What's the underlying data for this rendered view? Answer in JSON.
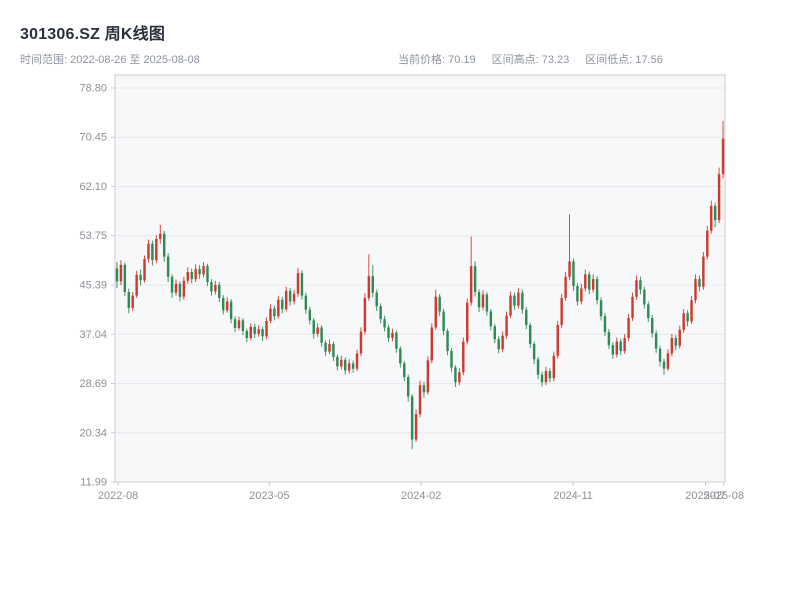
{
  "header": {
    "title": "301306.SZ 周K线图",
    "time_range": "时间范围: 2022-08-26 至 2025-08-08",
    "current_price": "当前价格: 70.19",
    "range_high": "区间高点: 73.23",
    "range_low": "区间低点: 17.56"
  },
  "chart_data": {
    "type": "candlestick",
    "title": "301306.SZ 周K线图",
    "symbol": "301306.SZ",
    "interval": "weekly",
    "time_range": {
      "start": "2022-08-26",
      "end": "2025-08-08"
    },
    "current_price": 70.19,
    "range_high": 73.23,
    "range_low": 17.56,
    "ylim": [
      11.99,
      81.0
    ],
    "y_ticks": [
      "78.80",
      "70.45",
      "62.10",
      "53.75",
      "45.39",
      "37.04",
      "28.69",
      "20.34",
      "11.99"
    ],
    "x_ticks": [
      {
        "label": "2022-08",
        "pos": 0.005
      },
      {
        "label": "2023-05",
        "pos": 0.253
      },
      {
        "label": "2024-02",
        "pos": 0.502
      },
      {
        "label": "2024-11",
        "pos": 0.751
      },
      {
        "label": "2025-07",
        "pos": 0.968
      },
      {
        "label": "2025-08",
        "pos": 0.998
      }
    ],
    "grid": true,
    "legend": "none",
    "colors": {
      "up": "#cf3a2e",
      "down": "#2e8b57",
      "grid": "#e6e8eb",
      "axis": "#c9cdd4",
      "plot_bg": "#f7f8f9",
      "text": "#8b9097"
    },
    "candles_format": [
      "open",
      "high",
      "low",
      "close"
    ],
    "candles": [
      [
        48.2,
        49.3,
        44.9,
        46.0
      ],
      [
        46.0,
        49.6,
        45.4,
        48.8
      ],
      [
        48.8,
        49.2,
        43.5,
        44.2
      ],
      [
        44.2,
        44.8,
        40.6,
        41.5
      ],
      [
        41.5,
        44.2,
        41.0,
        43.6
      ],
      [
        43.6,
        47.8,
        43.2,
        47.1
      ],
      [
        47.1,
        48.0,
        45.3,
        46.2
      ],
      [
        46.2,
        50.4,
        45.8,
        49.8
      ],
      [
        49.8,
        53.1,
        49.2,
        52.4
      ],
      [
        52.4,
        52.9,
        48.7,
        49.6
      ],
      [
        49.6,
        53.9,
        49.1,
        53.2
      ],
      [
        53.2,
        55.6,
        52.4,
        54.1
      ],
      [
        54.1,
        54.6,
        49.3,
        50.2
      ],
      [
        50.2,
        50.8,
        45.9,
        46.8
      ],
      [
        46.8,
        47.2,
        43.2,
        44.1
      ],
      [
        44.1,
        46.3,
        43.6,
        45.6
      ],
      [
        45.6,
        46.0,
        42.6,
        43.4
      ],
      [
        43.4,
        46.8,
        42.9,
        46.1
      ],
      [
        46.1,
        48.4,
        45.6,
        47.6
      ],
      [
        47.6,
        48.2,
        45.7,
        46.4
      ],
      [
        46.4,
        48.9,
        45.9,
        48.1
      ],
      [
        48.1,
        48.8,
        46.4,
        47.2
      ],
      [
        47.2,
        49.3,
        46.7,
        48.6
      ],
      [
        48.6,
        49.0,
        45.2,
        45.9
      ],
      [
        45.9,
        46.4,
        43.6,
        44.3
      ],
      [
        44.3,
        46.1,
        43.8,
        45.4
      ],
      [
        45.4,
        45.9,
        42.5,
        43.2
      ],
      [
        43.2,
        43.7,
        40.4,
        41.1
      ],
      [
        41.1,
        43.3,
        40.7,
        42.6
      ],
      [
        42.6,
        43.0,
        38.9,
        39.6
      ],
      [
        39.6,
        40.1,
        37.4,
        38.1
      ],
      [
        38.1,
        40.0,
        37.7,
        39.4
      ],
      [
        39.4,
        39.8,
        36.9,
        37.6
      ],
      [
        37.6,
        38.0,
        35.7,
        36.4
      ],
      [
        36.4,
        38.9,
        36.0,
        38.3
      ],
      [
        38.3,
        38.8,
        36.4,
        37.1
      ],
      [
        37.1,
        38.6,
        36.6,
        37.9
      ],
      [
        37.9,
        38.3,
        35.9,
        36.7
      ],
      [
        36.7,
        39.9,
        36.2,
        39.3
      ],
      [
        39.3,
        42.1,
        38.9,
        41.4
      ],
      [
        41.4,
        41.9,
        39.4,
        40.1
      ],
      [
        40.1,
        43.5,
        39.7,
        42.9
      ],
      [
        42.9,
        43.4,
        40.6,
        41.3
      ],
      [
        41.3,
        45.1,
        40.9,
        44.4
      ],
      [
        44.4,
        44.9,
        41.9,
        42.6
      ],
      [
        42.6,
        44.6,
        42.1,
        43.9
      ],
      [
        43.9,
        48.3,
        43.4,
        47.4
      ],
      [
        47.4,
        47.9,
        42.9,
        43.6
      ],
      [
        43.6,
        44.1,
        40.5,
        41.2
      ],
      [
        41.2,
        41.7,
        38.7,
        39.4
      ],
      [
        39.4,
        39.8,
        36.3,
        37.1
      ],
      [
        37.1,
        38.9,
        36.6,
        38.2
      ],
      [
        38.2,
        38.6,
        34.9,
        35.6
      ],
      [
        35.6,
        36.0,
        33.4,
        34.1
      ],
      [
        34.1,
        36.1,
        33.7,
        35.4
      ],
      [
        35.4,
        35.8,
        32.5,
        33.2
      ],
      [
        33.2,
        33.6,
        30.9,
        31.6
      ],
      [
        31.6,
        33.4,
        31.1,
        32.7
      ],
      [
        32.7,
        33.1,
        30.2,
        30.9
      ],
      [
        30.9,
        32.8,
        30.4,
        32.1
      ],
      [
        32.1,
        32.6,
        30.5,
        31.2
      ],
      [
        31.2,
        34.4,
        30.8,
        33.8
      ],
      [
        33.8,
        38.2,
        33.3,
        37.5
      ],
      [
        37.5,
        44.0,
        37.0,
        43.2
      ],
      [
        43.2,
        50.6,
        42.7,
        46.9
      ],
      [
        46.9,
        48.8,
        43.3,
        44.1
      ],
      [
        44.1,
        44.6,
        41.0,
        41.8
      ],
      [
        41.8,
        42.3,
        38.9,
        39.6
      ],
      [
        39.6,
        40.2,
        37.5,
        38.2
      ],
      [
        38.2,
        38.7,
        35.7,
        36.4
      ],
      [
        36.4,
        38.0,
        35.9,
        37.3
      ],
      [
        37.3,
        37.7,
        33.9,
        34.6
      ],
      [
        34.6,
        35.0,
        31.4,
        32.1
      ],
      [
        32.1,
        32.5,
        29.1,
        29.8
      ],
      [
        29.8,
        30.2,
        25.6,
        26.5
      ],
      [
        26.5,
        26.9,
        17.56,
        19.2
      ],
      [
        19.2,
        24.3,
        18.8,
        23.5
      ],
      [
        23.5,
        29.2,
        23.0,
        28.4
      ],
      [
        28.4,
        29.0,
        26.3,
        27.2
      ],
      [
        27.2,
        33.3,
        26.8,
        32.6
      ],
      [
        32.6,
        38.9,
        32.1,
        38.2
      ],
      [
        38.2,
        44.6,
        37.8,
        43.4
      ],
      [
        43.4,
        43.9,
        40.1,
        40.9
      ],
      [
        40.9,
        41.4,
        36.9,
        37.6
      ],
      [
        37.6,
        38.0,
        33.5,
        34.2
      ],
      [
        34.2,
        34.7,
        30.6,
        31.4
      ],
      [
        31.4,
        31.8,
        28.1,
        28.9
      ],
      [
        28.9,
        31.3,
        28.4,
        30.6
      ],
      [
        30.6,
        36.5,
        30.1,
        35.8
      ],
      [
        35.8,
        43.1,
        35.3,
        42.4
      ],
      [
        42.4,
        53.6,
        41.9,
        48.6
      ],
      [
        48.6,
        49.4,
        43.4,
        44.2
      ],
      [
        44.2,
        44.7,
        40.8,
        41.6
      ],
      [
        41.6,
        44.5,
        41.1,
        43.8
      ],
      [
        43.8,
        44.2,
        40.2,
        40.9
      ],
      [
        40.9,
        41.3,
        37.7,
        38.4
      ],
      [
        38.4,
        38.8,
        35.5,
        36.2
      ],
      [
        36.2,
        36.7,
        33.8,
        34.5
      ],
      [
        34.5,
        37.5,
        34.0,
        36.8
      ],
      [
        36.8,
        40.9,
        36.3,
        40.2
      ],
      [
        40.2,
        44.3,
        39.8,
        43.6
      ],
      [
        43.6,
        44.1,
        41.2,
        41.9
      ],
      [
        41.9,
        44.9,
        41.4,
        44.1
      ],
      [
        44.1,
        44.6,
        40.5,
        41.2
      ],
      [
        41.2,
        41.7,
        37.9,
        38.6
      ],
      [
        38.6,
        39.0,
        34.7,
        35.4
      ],
      [
        35.4,
        35.8,
        32.0,
        32.8
      ],
      [
        32.8,
        33.2,
        29.4,
        30.2
      ],
      [
        30.2,
        30.7,
        28.2,
        28.9
      ],
      [
        28.9,
        31.5,
        28.4,
        30.8
      ],
      [
        30.8,
        31.3,
        28.9,
        29.6
      ],
      [
        29.6,
        34.1,
        29.1,
        33.4
      ],
      [
        33.4,
        39.3,
        32.9,
        38.6
      ],
      [
        38.6,
        43.9,
        38.1,
        43.2
      ],
      [
        43.2,
        47.6,
        42.7,
        46.8
      ],
      [
        46.8,
        57.4,
        46.2,
        49.4
      ],
      [
        49.4,
        49.9,
        44.4,
        45.2
      ],
      [
        45.2,
        45.7,
        41.9,
        42.6
      ],
      [
        42.6,
        45.6,
        42.1,
        44.8
      ],
      [
        44.8,
        48.0,
        44.3,
        47.2
      ],
      [
        47.2,
        47.7,
        43.8,
        44.6
      ],
      [
        44.6,
        47.2,
        44.1,
        46.4
      ],
      [
        46.4,
        46.9,
        42.1,
        42.8
      ],
      [
        42.8,
        43.3,
        39.4,
        40.1
      ],
      [
        40.1,
        40.6,
        36.7,
        37.4
      ],
      [
        37.4,
        37.9,
        34.5,
        35.2
      ],
      [
        35.2,
        35.7,
        32.9,
        33.6
      ],
      [
        33.6,
        36.5,
        33.1,
        35.8
      ],
      [
        35.8,
        36.3,
        33.5,
        34.2
      ],
      [
        34.2,
        37.1,
        33.7,
        36.4
      ],
      [
        36.4,
        40.5,
        35.9,
        39.8
      ],
      [
        39.8,
        44.1,
        39.3,
        43.4
      ],
      [
        43.4,
        47.0,
        42.9,
        46.2
      ],
      [
        46.2,
        46.8,
        43.8,
        44.6
      ],
      [
        44.6,
        45.1,
        41.4,
        42.1
      ],
      [
        42.1,
        42.6,
        39.1,
        39.8
      ],
      [
        39.8,
        40.3,
        36.5,
        37.2
      ],
      [
        37.2,
        37.7,
        33.9,
        34.6
      ],
      [
        34.6,
        35.1,
        31.6,
        32.4
      ],
      [
        32.4,
        32.9,
        30.2,
        31.2
      ],
      [
        31.2,
        34.5,
        30.8,
        33.8
      ],
      [
        33.8,
        37.1,
        33.3,
        36.4
      ],
      [
        36.4,
        36.9,
        34.3,
        35.1
      ],
      [
        35.1,
        38.5,
        34.6,
        37.8
      ],
      [
        37.8,
        41.3,
        37.3,
        40.6
      ],
      [
        40.6,
        41.1,
        38.4,
        39.2
      ],
      [
        39.2,
        43.5,
        38.8,
        42.8
      ],
      [
        42.8,
        47.2,
        42.3,
        46.4
      ],
      [
        46.4,
        47.0,
        44.3,
        45.1
      ],
      [
        45.1,
        51.0,
        44.6,
        50.2
      ],
      [
        50.2,
        55.4,
        49.7,
        54.6
      ],
      [
        54.6,
        59.7,
        54.1,
        58.8
      ],
      [
        58.8,
        59.4,
        55.2,
        56.4
      ],
      [
        56.4,
        65.3,
        55.9,
        64.2
      ],
      [
        64.2,
        73.23,
        63.5,
        70.19
      ]
    ]
  }
}
